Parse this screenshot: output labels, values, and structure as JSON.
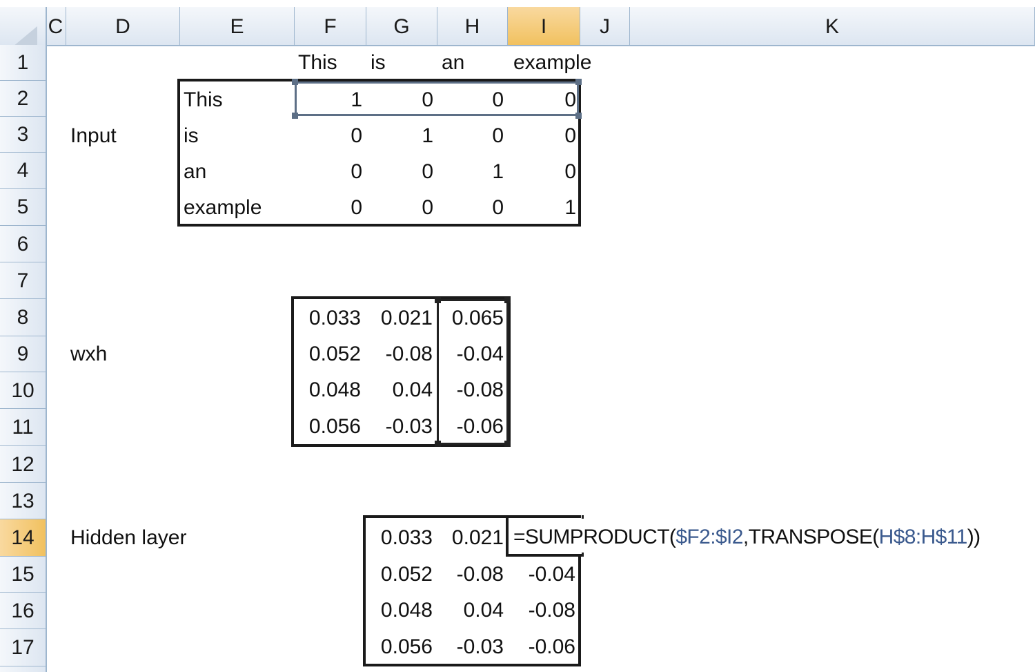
{
  "columns": [
    "C",
    "D",
    "E",
    "F",
    "G",
    "H",
    "I",
    "J",
    "K"
  ],
  "rows": [
    "1",
    "2",
    "3",
    "4",
    "5",
    "6",
    "7",
    "8",
    "9",
    "10",
    "11",
    "12",
    "13",
    "14",
    "15",
    "16",
    "17"
  ],
  "active_column": "I",
  "active_row": "14",
  "header_labels": [
    "This",
    "is",
    "an",
    "example"
  ],
  "labels": {
    "input": "Input",
    "wxh": "wxh",
    "hidden": "Hidden layer"
  },
  "input_rows": [
    {
      "word": "This",
      "values": [
        "1",
        "0",
        "0",
        "0"
      ]
    },
    {
      "word": "is",
      "values": [
        "0",
        "1",
        "0",
        "0"
      ]
    },
    {
      "word": "an",
      "values": [
        "0",
        "0",
        "1",
        "0"
      ]
    },
    {
      "word": "example",
      "values": [
        "0",
        "0",
        "0",
        "1"
      ]
    }
  ],
  "wxh": [
    [
      "0.033",
      "0.021",
      "0.065"
    ],
    [
      "0.052",
      "-0.08",
      "-0.04"
    ],
    [
      "0.048",
      "0.04",
      "-0.08"
    ],
    [
      "0.056",
      "-0.03",
      "-0.06"
    ]
  ],
  "hidden": [
    [
      "0.033",
      "0.021",
      ""
    ],
    [
      "0.052",
      "-0.08",
      "-0.04"
    ],
    [
      "0.048",
      "0.04",
      "-0.08"
    ],
    [
      "0.056",
      "-0.03",
      "-0.06"
    ]
  ],
  "formula": {
    "p1": "=SUMPRODUCT(",
    "ref1": "$F2:$I2",
    "p2": ",TRANSPOSE(",
    "ref2": "H$8:H$11",
    "p3": "))"
  },
  "colors": {
    "selection": "#5d6f86",
    "active_header": "#f1c15f",
    "header_bg": "#dde6f1",
    "reference_text": "#3b5a8e"
  }
}
